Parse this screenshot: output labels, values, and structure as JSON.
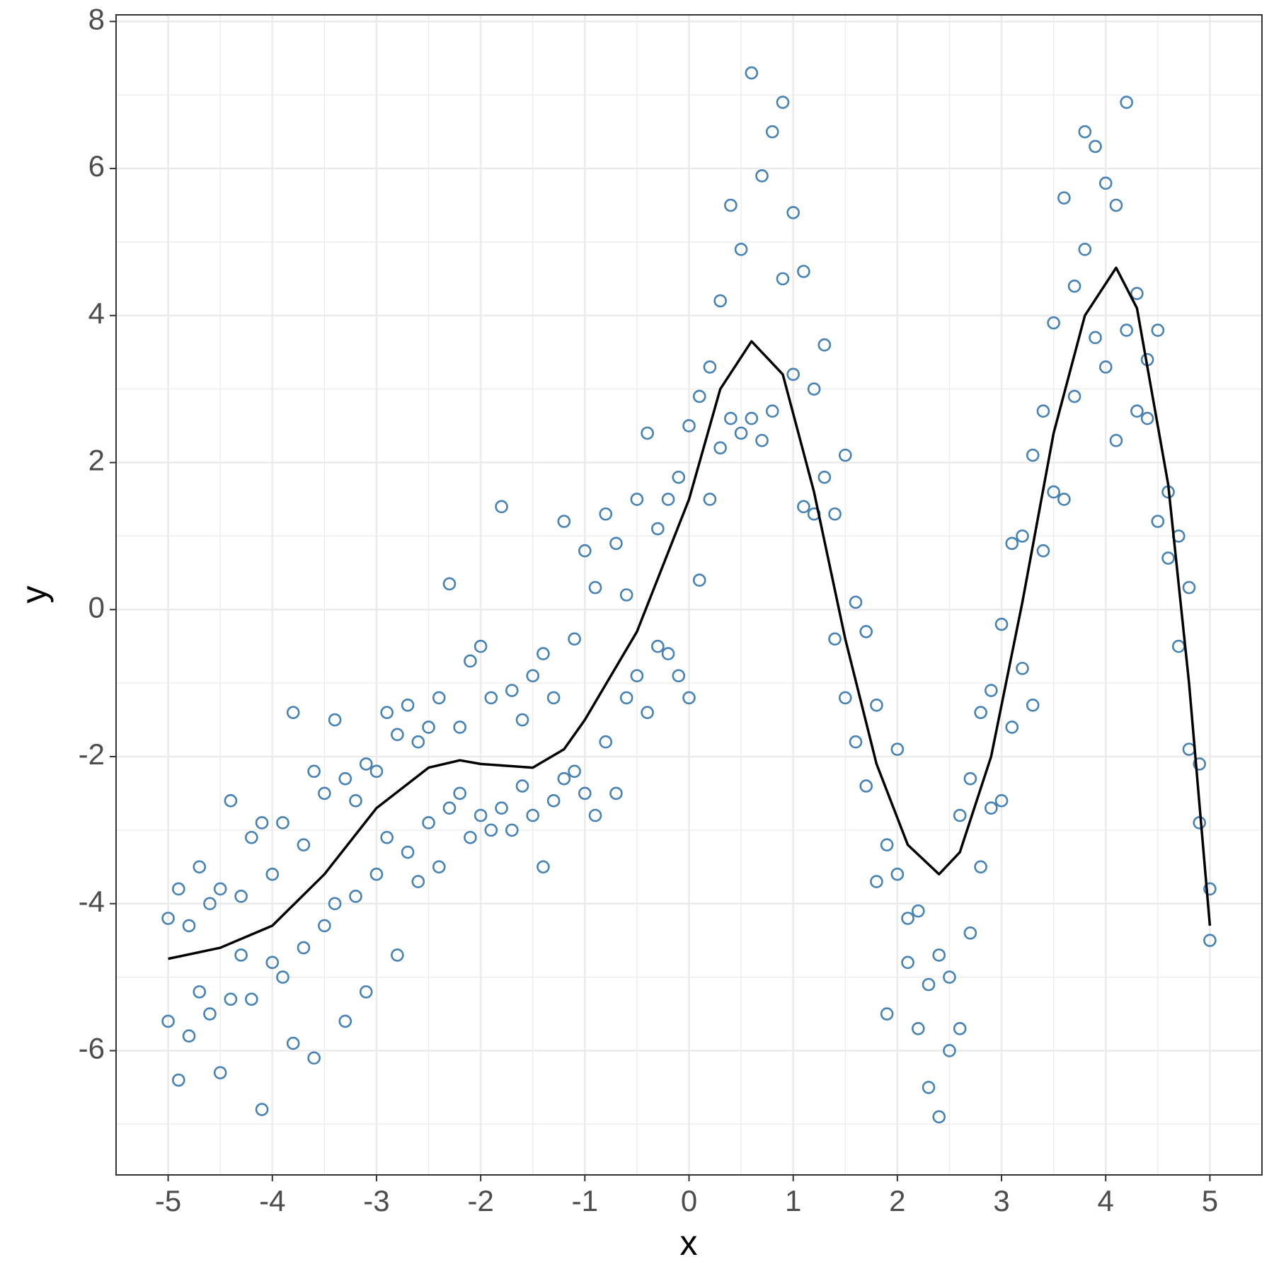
{
  "chart_data": {
    "type": "scatter",
    "xlabel": "x",
    "ylabel": "y",
    "xlim": [
      -5.5,
      5.5
    ],
    "xticks": [
      -5,
      -4,
      -3,
      -2,
      -1,
      0,
      1,
      2,
      3,
      4,
      5
    ],
    "ylim": [
      -7.69,
      8.09
    ],
    "yticks": [
      -6,
      -4,
      -2,
      0,
      2,
      4,
      6,
      8
    ],
    "grid": true,
    "color": "#4682b4",
    "x": [
      -5.0,
      -5.0,
      -4.9,
      -4.9,
      -4.8,
      -4.8,
      -4.7,
      -4.7,
      -4.6,
      -4.6,
      -4.5,
      -4.5,
      -4.4,
      -4.4,
      -4.3,
      -4.3,
      -4.2,
      -4.2,
      -4.1,
      -4.1,
      -4.0,
      -4.0,
      -3.9,
      -3.9,
      -3.8,
      -3.8,
      -3.7,
      -3.7,
      -3.6,
      -3.6,
      -3.5,
      -3.5,
      -3.4,
      -3.4,
      -3.3,
      -3.3,
      -3.2,
      -3.2,
      -3.1,
      -3.1,
      -3.0,
      -3.0,
      -2.9,
      -2.9,
      -2.8,
      -2.8,
      -2.7,
      -2.7,
      -2.6,
      -2.6,
      -2.5,
      -2.5,
      -2.4,
      -2.4,
      -2.3,
      -2.3,
      -2.2,
      -2.2,
      -2.1,
      -2.1,
      -2.0,
      -2.0,
      -1.9,
      -1.9,
      -1.8,
      -1.8,
      -1.7,
      -1.7,
      -1.6,
      -1.6,
      -1.5,
      -1.5,
      -1.4,
      -1.4,
      -1.3,
      -1.3,
      -1.2,
      -1.2,
      -1.1,
      -1.1,
      -1.0,
      -1.0,
      -0.9,
      -0.9,
      -0.8,
      -0.8,
      -0.7,
      -0.7,
      -0.6,
      -0.6,
      -0.5,
      -0.5,
      -0.4,
      -0.4,
      -0.3,
      -0.3,
      -0.2,
      -0.2,
      -0.1,
      -0.1,
      0.0,
      0.0,
      0.1,
      0.1,
      0.2,
      0.2,
      0.3,
      0.3,
      0.4,
      0.4,
      0.5,
      0.5,
      0.6,
      0.6,
      0.7,
      0.7,
      0.8,
      0.8,
      0.9,
      0.9,
      1.0,
      1.0,
      1.1,
      1.1,
      1.2,
      1.2,
      1.3,
      1.3,
      1.4,
      1.4,
      1.5,
      1.5,
      1.6,
      1.6,
      1.7,
      1.7,
      1.8,
      1.8,
      1.9,
      1.9,
      2.0,
      2.0,
      2.1,
      2.1,
      2.2,
      2.2,
      2.3,
      2.3,
      2.4,
      2.4,
      2.5,
      2.5,
      2.6,
      2.6,
      2.7,
      2.7,
      2.8,
      2.8,
      2.9,
      2.9,
      3.0,
      3.0,
      3.1,
      3.1,
      3.2,
      3.2,
      3.3,
      3.3,
      3.4,
      3.4,
      3.5,
      3.5,
      3.6,
      3.6,
      3.7,
      3.7,
      3.8,
      3.8,
      3.9,
      3.9,
      4.0,
      4.0,
      4.1,
      4.1,
      4.2,
      4.2,
      4.3,
      4.3,
      4.4,
      4.4,
      4.5,
      4.5,
      4.6,
      4.6,
      4.7,
      4.7,
      4.8,
      4.8,
      4.9,
      4.9,
      5.0,
      5.0
    ],
    "values": [
      -4.2,
      -5.6,
      -3.8,
      -6.4,
      -4.3,
      -5.8,
      -3.5,
      -5.2,
      -4.0,
      -5.5,
      -3.8,
      -6.3,
      -2.6,
      -5.3,
      -3.9,
      -4.7,
      -3.1,
      -5.3,
      -2.9,
      -6.8,
      -3.6,
      -4.8,
      -2.9,
      -5.0,
      -1.4,
      -5.9,
      -3.2,
      -4.6,
      -2.2,
      -6.1,
      -2.5,
      -4.3,
      -1.5,
      -4.0,
      -2.3,
      -5.6,
      -2.6,
      -3.9,
      -2.1,
      -5.2,
      -2.2,
      -3.6,
      -1.4,
      -3.1,
      -1.7,
      -4.7,
      -1.3,
      -3.3,
      -1.8,
      -3.7,
      -1.6,
      -2.9,
      -1.2,
      -3.5,
      0.35,
      -2.7,
      -1.6,
      -2.5,
      -0.7,
      -3.1,
      -0.5,
      -2.8,
      -1.2,
      -3.0,
      1.4,
      -2.7,
      -1.1,
      -3.0,
      -1.5,
      -2.4,
      -0.9,
      -2.8,
      -0.6,
      -3.5,
      -1.2,
      -2.6,
      1.2,
      -2.3,
      -0.4,
      -2.2,
      0.8,
      -2.5,
      0.3,
      -2.8,
      1.3,
      -1.8,
      0.9,
      -2.5,
      0.2,
      -1.2,
      1.5,
      -0.9,
      2.4,
      -1.4,
      1.1,
      -0.5,
      1.5,
      -0.6,
      1.8,
      -0.9,
      2.5,
      -1.2,
      2.9,
      0.4,
      1.5,
      3.3,
      4.2,
      2.2,
      5.5,
      2.6,
      4.9,
      2.4,
      7.3,
      2.6,
      5.9,
      2.3,
      6.5,
      2.7,
      6.9,
      4.5,
      5.4,
      3.2,
      4.6,
      1.4,
      3.0,
      1.3,
      3.6,
      1.8,
      1.3,
      -0.4,
      2.1,
      -1.2,
      0.1,
      -1.8,
      -0.3,
      -2.4,
      -1.3,
      -3.7,
      -3.2,
      -5.5,
      -3.6,
      -1.9,
      -4.2,
      -4.8,
      -5.7,
      -4.1,
      -6.5,
      -5.1,
      -4.7,
      -6.9,
      -5.0,
      -6.0,
      -2.8,
      -5.7,
      -2.3,
      -4.4,
      -1.4,
      -3.5,
      -1.1,
      -2.7,
      -0.2,
      -2.6,
      0.9,
      -1.6,
      1.0,
      -0.8,
      2.1,
      -1.3,
      2.7,
      0.8,
      3.9,
      1.6,
      5.6,
      1.5,
      4.4,
      2.9,
      6.5,
      4.9,
      6.3,
      3.7,
      5.8,
      3.3,
      5.5,
      2.3,
      6.9,
      3.8,
      2.7,
      4.3,
      3.4,
      2.6,
      3.8,
      1.2,
      1.6,
      0.7,
      1.0,
      -0.5,
      -1.9,
      0.3,
      -2.1,
      -2.9,
      -4.5,
      -3.8
    ],
    "fit": {
      "color": "#000000",
      "x": [
        -5.0,
        -4.5,
        -4.0,
        -3.5,
        -3.0,
        -2.5,
        -2.2,
        -2.0,
        -1.5,
        -1.2,
        -1.0,
        -0.5,
        0.0,
        0.3,
        0.6,
        0.9,
        1.2,
        1.5,
        1.8,
        2.1,
        2.4,
        2.6,
        2.9,
        3.2,
        3.5,
        3.8,
        4.1,
        4.3,
        4.6,
        4.8,
        5.0
      ],
      "values": [
        -4.75,
        -4.6,
        -4.3,
        -3.6,
        -2.7,
        -2.15,
        -2.05,
        -2.1,
        -2.15,
        -1.9,
        -1.5,
        -0.3,
        1.5,
        3.0,
        3.65,
        3.2,
        1.6,
        -0.4,
        -2.1,
        -3.2,
        -3.6,
        -3.3,
        -2.0,
        0.1,
        2.4,
        4.0,
        4.65,
        4.1,
        1.7,
        -1.0,
        -4.3
      ]
    }
  }
}
